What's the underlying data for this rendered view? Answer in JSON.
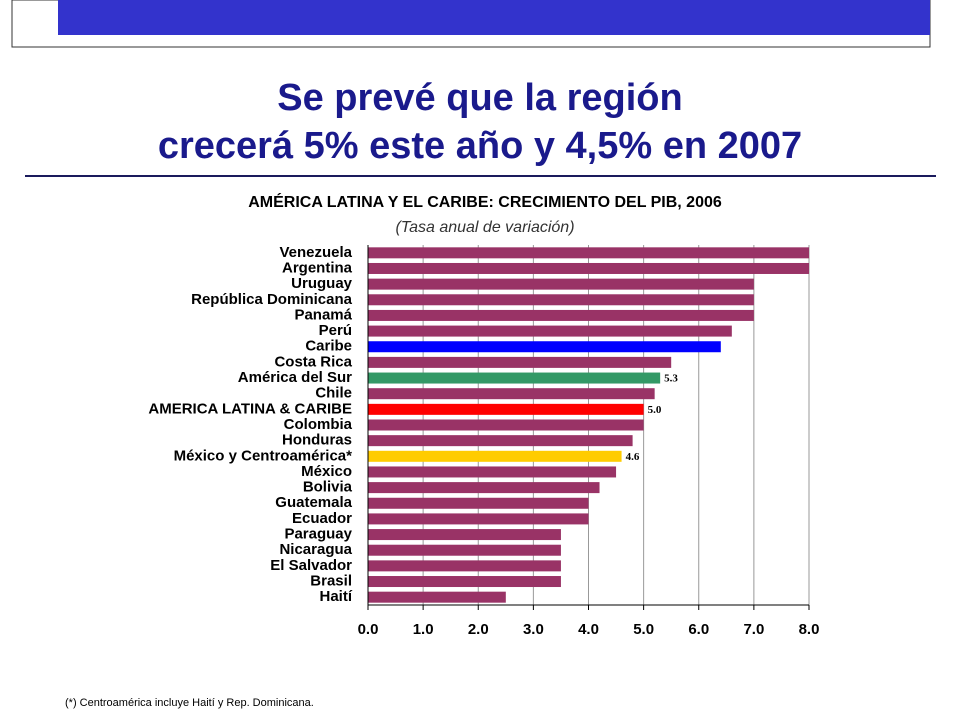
{
  "chart_data": {
    "type": "bar",
    "orientation": "horizontal",
    "title_lines": [
      "Se prevé que la región",
      "crecerá 5% este año y 4,5% en 2007"
    ],
    "chart_title": "AMÉRICA LATINA Y EL CARIBE: CRECIMIENTO DEL PIB, 2006",
    "subtitle": "(Tasa anual de variación)",
    "footnote": "(*) Centroamérica incluye Haití y Rep. Dominicana.",
    "categories": [
      "Venezuela",
      "Argentina",
      "Uruguay",
      "República Dominicana",
      "Panamá",
      "Perú",
      "Caribe",
      "Costa Rica",
      "América del Sur",
      "Chile",
      "AMERICA LATINA & CARIBE",
      "Colombia",
      "Honduras",
      "México y Centroamérica*",
      "México",
      "Bolivia",
      "Guatemala",
      "Ecuador",
      "Paraguay",
      "Nicaragua",
      "El Salvador",
      "Brasil",
      "Haití"
    ],
    "values": [
      8.0,
      8.0,
      7.0,
      7.0,
      7.0,
      6.6,
      6.4,
      5.5,
      5.3,
      5.2,
      5.0,
      5.0,
      4.8,
      4.6,
      4.5,
      4.2,
      4.0,
      4.0,
      3.5,
      3.5,
      3.5,
      3.5,
      2.5
    ],
    "value_labels": [
      null,
      null,
      null,
      null,
      null,
      null,
      null,
      null,
      "5.3",
      null,
      "5.0",
      null,
      null,
      "4.6",
      null,
      null,
      null,
      null,
      null,
      null,
      null,
      null,
      null
    ],
    "colors": [
      "#993366",
      "#993366",
      "#993366",
      "#993366",
      "#993366",
      "#993366",
      "#0000ff",
      "#993366",
      "#339966",
      "#993366",
      "#ff0000",
      "#993366",
      "#993366",
      "#ffcc00",
      "#993366",
      "#993366",
      "#993366",
      "#993366",
      "#993366",
      "#993366",
      "#993366",
      "#993366",
      "#993366"
    ],
    "xlim": [
      0,
      8
    ],
    "xticks": [
      {
        "value": 0,
        "label": "0.0"
      },
      {
        "value": 1,
        "label": "1.0"
      },
      {
        "value": 2,
        "label": "2.0"
      },
      {
        "value": 3,
        "label": "3.0"
      },
      {
        "value": 4,
        "label": "4.0"
      },
      {
        "value": 5,
        "label": "5.0"
      },
      {
        "value": 6,
        "label": "6.0"
      },
      {
        "value": 7,
        "label": "7.0"
      },
      {
        "value": 8,
        "label": "8.0"
      }
    ],
    "grid": true
  }
}
